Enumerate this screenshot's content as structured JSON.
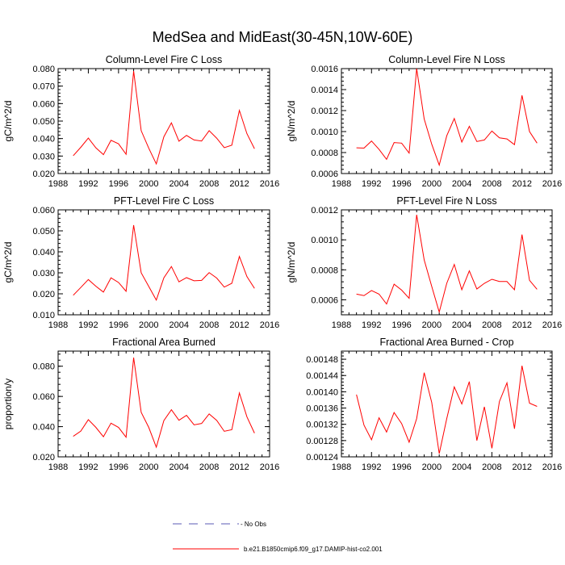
{
  "figure": {
    "title": "MedSea and MidEast(30-45N,10W-60E)"
  },
  "legend": {
    "entries": [
      {
        "label": "- No Obs",
        "style": "dashed",
        "color": "#5a5ab4"
      },
      {
        "label": "b.e21.B1850cmip6.f09_g17.DAMIP-hist-co2.001",
        "style": "solid",
        "color": "#ff0000"
      }
    ]
  },
  "chart_data": [
    {
      "type": "line",
      "title": "Column-Level Fire C Loss",
      "ylabel": "gC/m^2/d",
      "xlabel": "",
      "xlim": [
        1988,
        2016
      ],
      "ylim": [
        0.02,
        0.08
      ],
      "xticks": [
        "1988",
        "1992",
        "1996",
        "2000",
        "2004",
        "2008",
        "2012",
        "2016"
      ],
      "yticks": [
        "0.020",
        "0.030",
        "0.040",
        "0.050",
        "0.060",
        "0.070",
        "0.080"
      ],
      "series": [
        {
          "color": "#ff0000",
          "x": [
            1990,
            1991,
            1992,
            1993,
            1994,
            1995,
            1996,
            1997,
            1998,
            1999,
            2000,
            2001,
            2002,
            2003,
            2004,
            2005,
            2006,
            2007,
            2008,
            2009,
            2010,
            2011,
            2012,
            2013,
            2014
          ],
          "y": [
            0.0302,
            0.035,
            0.0403,
            0.0347,
            0.0308,
            0.039,
            0.037,
            0.031,
            0.0786,
            0.0445,
            0.0345,
            0.0255,
            0.041,
            0.049,
            0.0385,
            0.0418,
            0.0392,
            0.0386,
            0.0445,
            0.0402,
            0.0348,
            0.0362,
            0.0561,
            0.0428,
            0.0342
          ]
        }
      ]
    },
    {
      "type": "line",
      "title": "Column-Level Fire N Loss",
      "ylabel": "gN/m^2/d",
      "xlabel": "",
      "xlim": [
        1988,
        2016
      ],
      "ylim": [
        0.0006,
        0.0016
      ],
      "xticks": [
        "1988",
        "1992",
        "1996",
        "2000",
        "2004",
        "2008",
        "2012",
        "2016"
      ],
      "yticks": [
        "0.0006",
        "0.0008",
        "0.0010",
        "0.0012",
        "0.0014",
        "0.0016"
      ],
      "series": [
        {
          "color": "#ff0000",
          "x": [
            1990,
            1991,
            1992,
            1993,
            1994,
            1995,
            1996,
            1997,
            1998,
            1999,
            2000,
            2001,
            2002,
            2003,
            2004,
            2005,
            2006,
            2007,
            2008,
            2009,
            2010,
            2011,
            2012,
            2013,
            2014
          ],
          "y": [
            0.000845,
            0.000842,
            0.00091,
            0.00083,
            0.000735,
            0.000895,
            0.00089,
            0.000795,
            0.0016,
            0.00112,
            0.00088,
            0.00068,
            0.00096,
            0.001125,
            0.0009,
            0.00105,
            0.000905,
            0.00092,
            0.001005,
            0.00094,
            0.00093,
            0.000875,
            0.001345,
            0.001,
            0.00089
          ]
        }
      ]
    },
    {
      "type": "line",
      "title": "PFT-Level Fire C Loss",
      "ylabel": "gC/m^2/d",
      "xlabel": "",
      "xlim": [
        1988,
        2016
      ],
      "ylim": [
        0.01,
        0.06
      ],
      "xticks": [
        "1988",
        "1992",
        "1996",
        "2000",
        "2004",
        "2008",
        "2012",
        "2016"
      ],
      "yticks": [
        "0.010",
        "0.020",
        "0.030",
        "0.040",
        "0.050",
        "0.060"
      ],
      "series": [
        {
          "color": "#ff0000",
          "x": [
            1990,
            1991,
            1992,
            1993,
            1994,
            1995,
            1996,
            1997,
            1998,
            1999,
            2000,
            2001,
            2002,
            2003,
            2004,
            2005,
            2006,
            2007,
            2008,
            2009,
            2010,
            2011,
            2012,
            2013,
            2014
          ],
          "y": [
            0.0193,
            0.023,
            0.0268,
            0.0236,
            0.0208,
            0.0276,
            0.0254,
            0.0212,
            0.0527,
            0.03,
            0.0235,
            0.017,
            0.0276,
            0.033,
            0.0257,
            0.0277,
            0.0262,
            0.0264,
            0.0301,
            0.0275,
            0.0232,
            0.025,
            0.0378,
            0.0282,
            0.0226
          ]
        }
      ]
    },
    {
      "type": "line",
      "title": "PFT-Level Fire N Loss",
      "ylabel": "gN/m^2/d",
      "xlabel": "",
      "xlim": [
        1988,
        2016
      ],
      "ylim": [
        0.0005,
        0.0012
      ],
      "xticks": [
        "1988",
        "1992",
        "1996",
        "2000",
        "2004",
        "2008",
        "2012",
        "2016"
      ],
      "yticks": [
        "0.0006",
        "0.0008",
        "0.0010",
        "0.0012"
      ],
      "series": [
        {
          "color": "#ff0000",
          "x": [
            1990,
            1991,
            1992,
            1993,
            1994,
            1995,
            1996,
            1997,
            1998,
            1999,
            2000,
            2001,
            2002,
            2003,
            2004,
            2005,
            2006,
            2007,
            2008,
            2009,
            2010,
            2011,
            2012,
            2013,
            2014
          ],
          "y": [
            0.000638,
            0.000628,
            0.000662,
            0.000638,
            0.000572,
            0.000704,
            0.000665,
            0.00061,
            0.001167,
            0.000866,
            0.00069,
            0.000518,
            0.00071,
            0.000836,
            0.000667,
            0.000793,
            0.000672,
            0.00071,
            0.000737,
            0.000722,
            0.000722,
            0.000667,
            0.001035,
            0.00073,
            0.00067
          ]
        }
      ]
    },
    {
      "type": "line",
      "title": "Fractional Area Burned",
      "ylabel": "proportion/y",
      "xlabel": "",
      "xlim": [
        1988,
        2016
      ],
      "ylim": [
        0.02,
        0.09
      ],
      "xticks": [
        "1988",
        "1992",
        "1996",
        "2000",
        "2004",
        "2008",
        "2012",
        "2016"
      ],
      "yticks": [
        "0.020",
        "0.040",
        "0.060",
        "0.080"
      ],
      "series": [
        {
          "color": "#ff0000",
          "x": [
            1990,
            1991,
            1992,
            1993,
            1994,
            1995,
            1996,
            1997,
            1998,
            1999,
            2000,
            2001,
            2002,
            2003,
            2004,
            2005,
            2006,
            2007,
            2008,
            2009,
            2010,
            2011,
            2012,
            2013,
            2014
          ],
          "y": [
            0.0336,
            0.037,
            0.0446,
            0.0395,
            0.0333,
            0.0423,
            0.0395,
            0.033,
            0.0857,
            0.0495,
            0.0395,
            0.0264,
            0.044,
            0.0512,
            0.0442,
            0.0475,
            0.0412,
            0.0421,
            0.0484,
            0.0441,
            0.0369,
            0.038,
            0.0623,
            0.0465,
            0.0357
          ]
        }
      ]
    },
    {
      "type": "line",
      "title": "Fractional Area Burned - Crop",
      "ylabel": "",
      "xlabel": "",
      "xlim": [
        1988,
        2016
      ],
      "ylim": [
        0.00124,
        0.0015
      ],
      "xticks": [
        "1988",
        "1992",
        "1996",
        "2000",
        "2004",
        "2008",
        "2012",
        "2016"
      ],
      "yticks": [
        "0.00124",
        "0.00128",
        "0.00132",
        "0.00136",
        "0.00140",
        "0.00144",
        "0.00148"
      ],
      "series": [
        {
          "color": "#ff0000",
          "x": [
            1990,
            1991,
            1992,
            1993,
            1994,
            1995,
            1996,
            1997,
            1998,
            1999,
            2000,
            2001,
            2002,
            2003,
            2004,
            2005,
            2006,
            2007,
            2008,
            2009,
            2010,
            2011,
            2012,
            2013,
            2014
          ],
          "y": [
            0.001393,
            0.001318,
            0.001282,
            0.001336,
            0.001301,
            0.001349,
            0.001322,
            0.001276,
            0.001334,
            0.001447,
            0.001374,
            0.001248,
            0.001334,
            0.001412,
            0.00137,
            0.001425,
            0.00128,
            0.001363,
            0.001261,
            0.001376,
            0.001422,
            0.001309,
            0.001464,
            0.001372,
            0.001364
          ]
        }
      ]
    }
  ]
}
